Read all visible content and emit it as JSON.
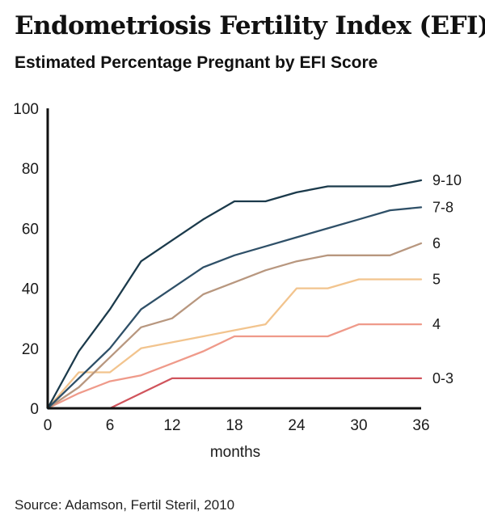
{
  "chart_data": {
    "type": "line",
    "title": "Endometriosis Fertility Index (EFI)",
    "subtitle": "Estimated Percentage Pregnant by EFI Score",
    "xlabel": "months",
    "ylabel": "",
    "xlim": [
      0,
      36
    ],
    "ylim": [
      0,
      100
    ],
    "xticks": [
      0,
      6,
      12,
      18,
      24,
      30,
      36
    ],
    "yticks": [
      0,
      20,
      40,
      60,
      80,
      100
    ],
    "grid": false,
    "legend": "labels at line ends (right)",
    "series": [
      {
        "name": "9-10",
        "color": "#1b3a4b",
        "points": [
          [
            0,
            0
          ],
          [
            3,
            19
          ],
          [
            6,
            33
          ],
          [
            9,
            49
          ],
          [
            12,
            56
          ],
          [
            15,
            63
          ],
          [
            18,
            69
          ],
          [
            21,
            69
          ],
          [
            24,
            72
          ],
          [
            27,
            74
          ],
          [
            30,
            74
          ],
          [
            33,
            74
          ],
          [
            36,
            76
          ]
        ]
      },
      {
        "name": "7-8",
        "color": "#2f5068",
        "points": [
          [
            0,
            0
          ],
          [
            3,
            10
          ],
          [
            6,
            20
          ],
          [
            9,
            33
          ],
          [
            12,
            40
          ],
          [
            15,
            47
          ],
          [
            18,
            51
          ],
          [
            21,
            54
          ],
          [
            24,
            57
          ],
          [
            27,
            60
          ],
          [
            30,
            63
          ],
          [
            33,
            66
          ],
          [
            36,
            67
          ]
        ]
      },
      {
        "name": "6",
        "color": "#b8977f",
        "points": [
          [
            0,
            0
          ],
          [
            3,
            7
          ],
          [
            6,
            17
          ],
          [
            9,
            27
          ],
          [
            12,
            30
          ],
          [
            15,
            38
          ],
          [
            18,
            42
          ],
          [
            21,
            46
          ],
          [
            24,
            49
          ],
          [
            27,
            51
          ],
          [
            30,
            51
          ],
          [
            33,
            51
          ],
          [
            36,
            55
          ]
        ]
      },
      {
        "name": "5",
        "color": "#f2c48e",
        "points": [
          [
            0,
            0
          ],
          [
            3,
            12
          ],
          [
            6,
            12
          ],
          [
            9,
            20
          ],
          [
            12,
            22
          ],
          [
            15,
            24
          ],
          [
            18,
            26
          ],
          [
            21,
            28
          ],
          [
            24,
            40
          ],
          [
            27,
            40
          ],
          [
            30,
            43
          ],
          [
            33,
            43
          ],
          [
            36,
            43
          ]
        ]
      },
      {
        "name": "4",
        "color": "#ef9a8a",
        "points": [
          [
            0,
            0
          ],
          [
            3,
            5
          ],
          [
            6,
            9
          ],
          [
            9,
            11
          ],
          [
            12,
            15
          ],
          [
            15,
            19
          ],
          [
            18,
            24
          ],
          [
            21,
            24
          ],
          [
            24,
            24
          ],
          [
            27,
            24
          ],
          [
            30,
            28
          ],
          [
            33,
            28
          ],
          [
            36,
            28
          ]
        ]
      },
      {
        "name": "0-3",
        "color": "#d0545c",
        "points": [
          [
            0,
            0
          ],
          [
            3,
            0
          ],
          [
            6,
            0
          ],
          [
            9,
            5
          ],
          [
            12,
            10
          ],
          [
            15,
            10
          ],
          [
            18,
            10
          ],
          [
            21,
            10
          ],
          [
            24,
            10
          ],
          [
            27,
            10
          ],
          [
            30,
            10
          ],
          [
            33,
            10
          ],
          [
            36,
            10
          ]
        ]
      }
    ]
  },
  "source": "Source: Adamson, Fertil Steril, 2010"
}
